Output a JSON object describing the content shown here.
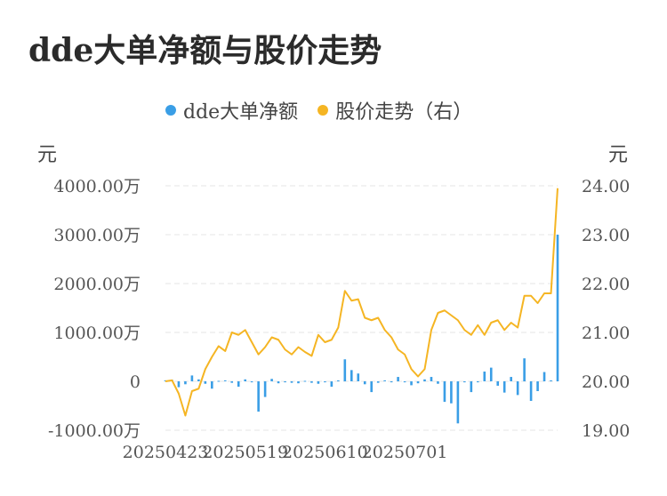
{
  "title": "dde大单净额与股价走势",
  "units": {
    "left": "元",
    "right": "元"
  },
  "legend": [
    {
      "label": "dde大单净额",
      "color": "#3a9ee6"
    },
    {
      "label": "股价走势（右）",
      "color": "#f5b523"
    }
  ],
  "colors": {
    "bar": "#3a9ee6",
    "line": "#f5b523",
    "grid": "#e6e6e6"
  },
  "chart_data": {
    "type": "bar+line",
    "x_tick_labels": [
      "20250423",
      "20250519",
      "20250610",
      "20250701"
    ],
    "y_left_ticks": [
      "-1000.00万",
      "0",
      "1000.00万",
      "2000.00万",
      "3000.00万",
      "4000.00万"
    ],
    "y_right_ticks": [
      "19.00",
      "20.00",
      "21.00",
      "22.00",
      "23.00",
      "24.00"
    ],
    "y_left_range": [
      -1000,
      4000
    ],
    "y_right_range": [
      19,
      24
    ],
    "grid": true,
    "legend_position": "top",
    "series": [
      {
        "name": "dde大单净额",
        "axis": "left",
        "unit": "万",
        "values": [
          20,
          30,
          -120,
          -60,
          120,
          40,
          -50,
          -150,
          10,
          20,
          -30,
          -110,
          40,
          -20,
          -620,
          -320,
          50,
          -40,
          -20,
          -30,
          -40,
          10,
          -30,
          -50,
          -20,
          -110,
          20,
          450,
          230,
          160,
          -60,
          -220,
          -30,
          20,
          -20,
          90,
          -20,
          -80,
          -40,
          40,
          90,
          -50,
          -420,
          -450,
          -860,
          -20,
          -220,
          -20,
          200,
          280,
          -90,
          -230,
          90,
          -280,
          470,
          -400,
          -200,
          190,
          20,
          3000
        ]
      },
      {
        "name": "股价走势（右）",
        "axis": "right",
        "unit": "元",
        "values": [
          20.0,
          20.02,
          19.75,
          19.3,
          19.8,
          19.85,
          20.25,
          20.5,
          20.72,
          20.62,
          21.0,
          20.95,
          21.05,
          20.8,
          20.55,
          20.7,
          20.9,
          20.85,
          20.65,
          20.55,
          20.7,
          20.6,
          20.52,
          20.95,
          20.8,
          20.85,
          21.1,
          21.85,
          21.65,
          21.68,
          21.3,
          21.25,
          21.3,
          21.05,
          20.9,
          20.65,
          20.55,
          20.25,
          20.1,
          20.25,
          21.05,
          21.4,
          21.45,
          21.35,
          21.25,
          21.05,
          20.95,
          21.15,
          20.95,
          21.2,
          21.25,
          21.05,
          21.2,
          21.1,
          21.75,
          21.75,
          21.6,
          21.8,
          21.8,
          23.95
        ]
      }
    ]
  }
}
